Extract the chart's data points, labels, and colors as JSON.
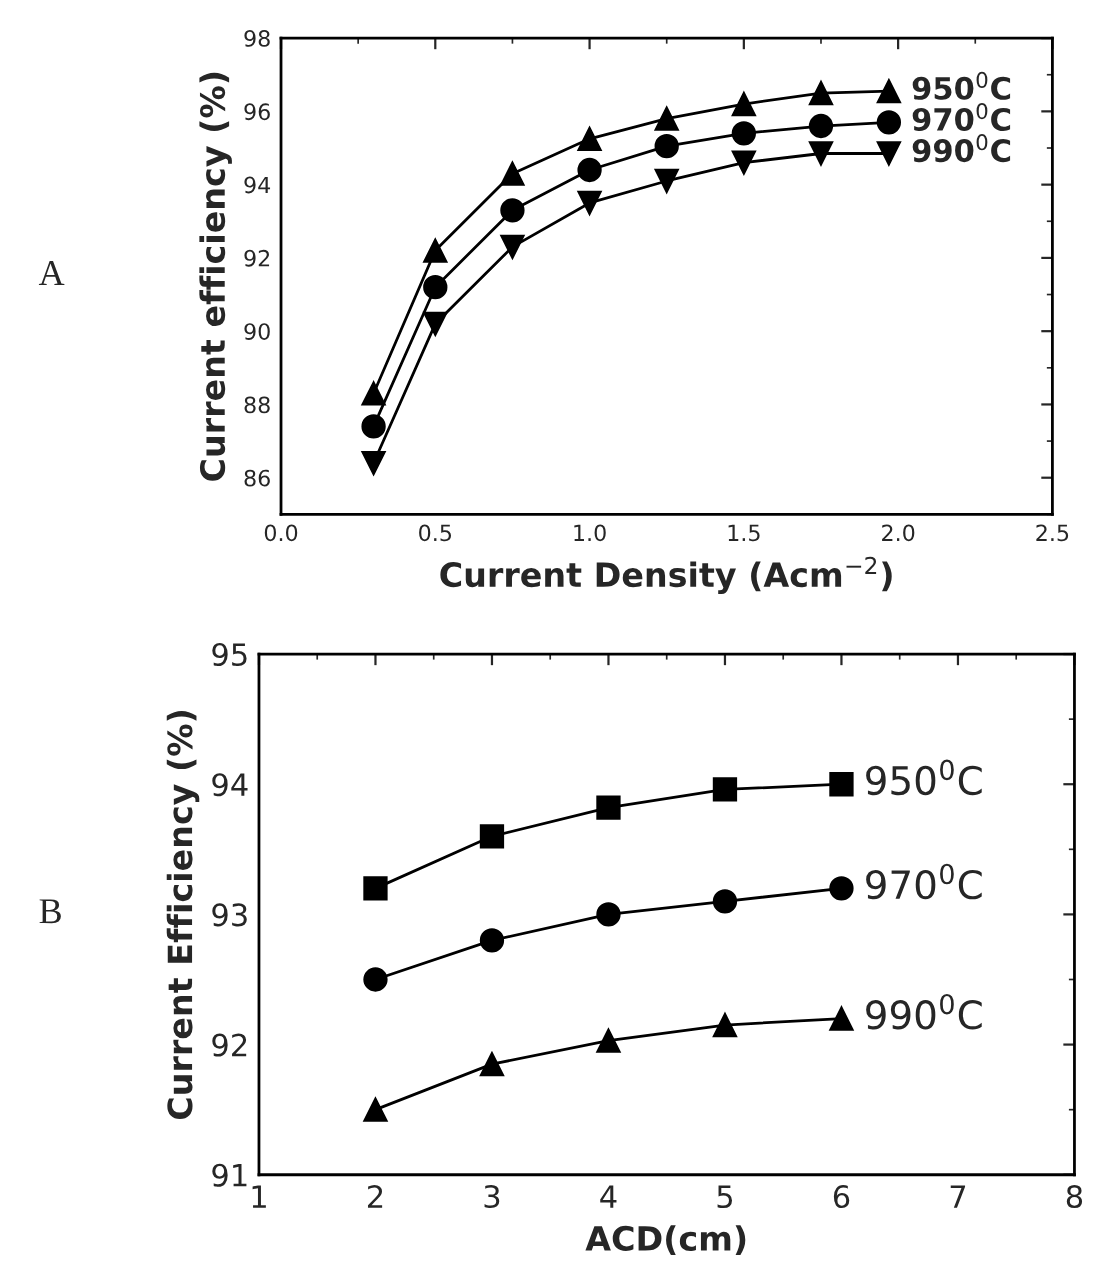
{
  "chart_data": [
    {
      "type": "line",
      "xlabel": "Current Density (Acm$^{−2}$)",
      "ylabel": "Current efficiency (%)",
      "annotations": [
        "A"
      ],
      "x": [
        0.3,
        0.5,
        0.75,
        1.0,
        1.25,
        1.5,
        1.75,
        1.97
      ],
      "xlim": [
        0,
        2.5
      ],
      "xticks": [
        {
          "value": 0,
          "label": "0.0"
        },
        0.5,
        {
          "value": 1,
          "label": "1.0"
        },
        1.5,
        {
          "value": 2,
          "label": "2.0"
        },
        2.5
      ],
      "ylim": [
        85,
        98
      ],
      "yticks": [
        86,
        88,
        90,
        92,
        94,
        96,
        98
      ],
      "grid": false,
      "legend": false,
      "series": [
        {
          "name": "950$^{0}$C",
          "color": "#000000",
          "marker": "triangle",
          "values": [
            88.3,
            92.2,
            94.3,
            95.25,
            95.8,
            96.2,
            96.5,
            96.55
          ]
        },
        {
          "name": "970$^{0}$C",
          "color": "#000000",
          "marker": "circle",
          "values": [
            87.4,
            91.2,
            93.3,
            94.4,
            95.05,
            95.4,
            95.6,
            95.7
          ]
        },
        {
          "name": "990$^{0}$C",
          "color": "#000000",
          "marker": "triangle_down",
          "values": [
            86.4,
            90.2,
            92.3,
            93.5,
            94.1,
            94.6,
            94.85,
            94.85
          ]
        }
      ]
    },
    {
      "type": "line",
      "xlabel": "ACD(cm)",
      "ylabel": "Current Efficiency (%)",
      "annotations": [
        "B"
      ],
      "x": [
        2,
        3,
        4,
        5,
        6
      ],
      "xlim": [
        1,
        8
      ],
      "xticks": [
        1,
        2,
        3,
        4,
        5,
        6,
        7,
        8
      ],
      "ylim": [
        91,
        95
      ],
      "yticks": [
        91,
        92,
        93,
        94,
        95
      ],
      "grid": false,
      "legend": false,
      "series": [
        {
          "name": "950$^{0}$C",
          "color": "#000000",
          "marker": "square",
          "values": [
            93.2,
            93.6,
            93.82,
            93.96,
            94.0
          ]
        },
        {
          "name": "970$^{0}$C",
          "color": "#000000",
          "marker": "circle",
          "values": [
            92.5,
            92.8,
            93.0,
            93.1,
            93.2
          ]
        },
        {
          "name": "990$^{0}$C",
          "color": "#000000",
          "marker": "triangle",
          "values": [
            91.5,
            91.85,
            92.03,
            92.15,
            92.2
          ]
        }
      ]
    }
  ]
}
